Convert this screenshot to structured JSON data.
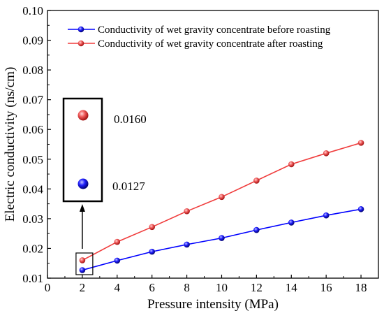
{
  "chart_data": {
    "type": "line",
    "title": "",
    "xlabel": "Pressure intensity (MPa)",
    "ylabel": "Electric conductivity (ns/cm)",
    "xlim": [
      0,
      19
    ],
    "ylim": [
      0.01,
      0.1
    ],
    "xticks": [
      "0",
      "2",
      "4",
      "6",
      "8",
      "10",
      "12",
      "14",
      "16",
      "18"
    ],
    "yticks": [
      "0.01",
      "0.02",
      "0.03",
      "0.04",
      "0.05",
      "0.06",
      "0.07",
      "0.08",
      "0.09",
      "0.10"
    ],
    "x": [
      2,
      4,
      6,
      8,
      10,
      12,
      14,
      16,
      18
    ],
    "series": [
      {
        "name": "Conductivity of wet gravity concentrate before roasting",
        "color": "#0000ff",
        "values": [
          0.0127,
          0.0159,
          0.0189,
          0.0213,
          0.0235,
          0.0262,
          0.0287,
          0.0311,
          0.0332
        ]
      },
      {
        "name": "Conductivity of wet gravity concentrate after roasting",
        "color": "#f03c3c",
        "values": [
          0.016,
          0.0222,
          0.0272,
          0.0325,
          0.0373,
          0.0428,
          0.0483,
          0.052,
          0.0555
        ]
      }
    ],
    "legend_position": "top",
    "grid": false,
    "annotations": {
      "highlighted_x": 2,
      "after_value_label": "0.0160",
      "before_value_label": "0.0127"
    }
  }
}
